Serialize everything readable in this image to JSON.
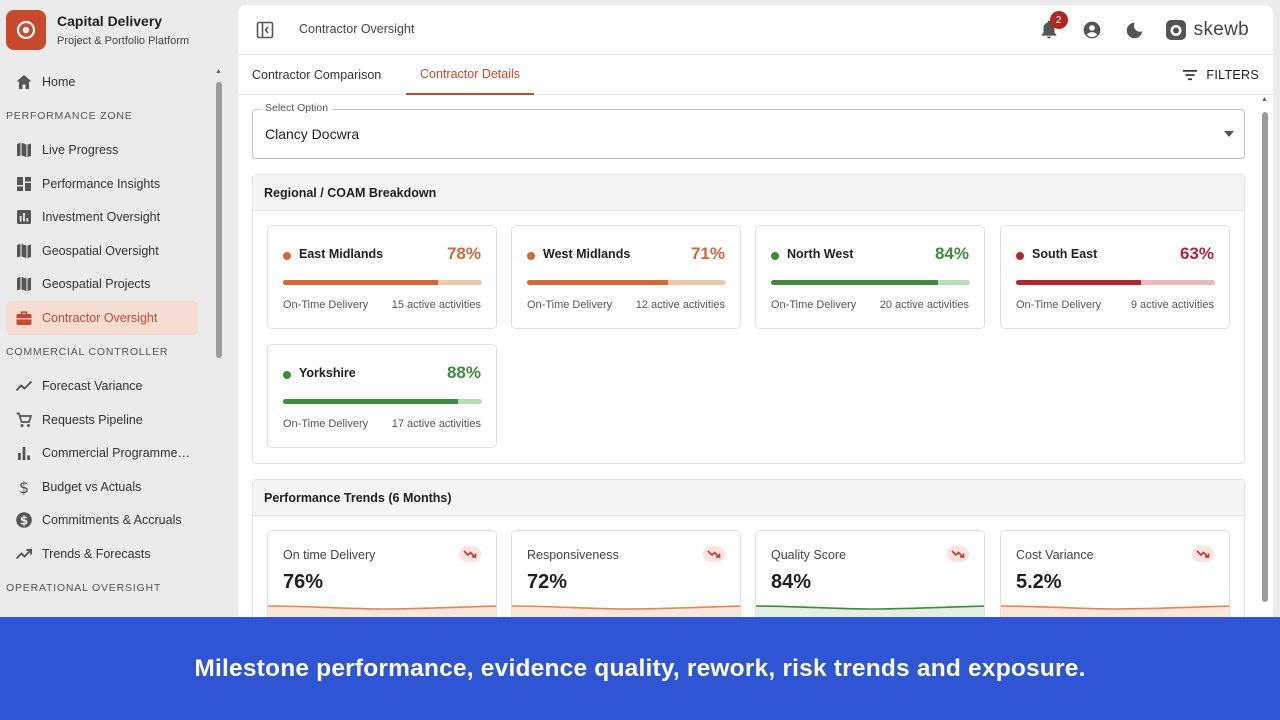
{
  "brand": {
    "title": "Capital Delivery",
    "subtitle": "Project & Portfolio Platform",
    "color": "#c8492e"
  },
  "sidebar": {
    "items": [
      {
        "type": "item",
        "label": "Home",
        "icon": "home-icon"
      },
      {
        "type": "section",
        "label": "PERFORMANCE ZONE"
      },
      {
        "type": "item",
        "label": "Live Progress",
        "icon": "map-icon"
      },
      {
        "type": "item",
        "label": "Performance Insights",
        "icon": "dashboard-icon"
      },
      {
        "type": "item",
        "label": "Investment Oversight",
        "icon": "bar-chart-box-icon"
      },
      {
        "type": "item",
        "label": "Geospatial Oversight",
        "icon": "map-icon"
      },
      {
        "type": "item",
        "label": "Geospatial Projects",
        "icon": "map-icon"
      },
      {
        "type": "item",
        "label": "Contractor Oversight",
        "icon": "briefcase-icon",
        "active": true
      },
      {
        "type": "section",
        "label": "COMMERCIAL CONTROLLER"
      },
      {
        "type": "item",
        "label": "Forecast Variance",
        "icon": "line-trend-icon"
      },
      {
        "type": "item",
        "label": "Requests Pipeline",
        "icon": "cart-icon"
      },
      {
        "type": "item",
        "label": "Commercial Programme…",
        "icon": "bar-chart-icon"
      },
      {
        "type": "item",
        "label": "Budget vs Actuals",
        "icon": "dollar-icon"
      },
      {
        "type": "item",
        "label": "Commitments & Accruals",
        "icon": "dollar-circle-icon"
      },
      {
        "type": "item",
        "label": "Trends & Forecasts",
        "icon": "trending-up-icon"
      },
      {
        "type": "section",
        "label": "OPERATIONAL OVERSIGHT"
      }
    ]
  },
  "header": {
    "breadcrumb": "Contractor Oversight",
    "notification_count": "2",
    "logo_text": "skewb"
  },
  "tabs": [
    {
      "label": "Contractor Comparison",
      "active": false
    },
    {
      "label": "Contractor Details",
      "active": true
    }
  ],
  "filters_label": "FILTERS",
  "select": {
    "label": "Select Option",
    "value": "Clancy Docwra"
  },
  "regional": {
    "title": "Regional / COAM Breakdown",
    "metric_label": "On-Time Delivery",
    "regions": [
      {
        "name": "East Midlands",
        "percent": 78,
        "percent_label": "78%",
        "activities": "15 active activities",
        "color": "#d2693a",
        "track": "#f0c7a9"
      },
      {
        "name": "West Midlands",
        "percent": 71,
        "percent_label": "71%",
        "activities": "12 active activities",
        "color": "#d2693a",
        "track": "#f0c7a9"
      },
      {
        "name": "North West",
        "percent": 84,
        "percent_label": "84%",
        "activities": "20 active activities",
        "color": "#3f8a3d",
        "track": "#b9dbb5"
      },
      {
        "name": "South East",
        "percent": 63,
        "percent_label": "63%",
        "activities": "9 active activities",
        "color": "#b3262e",
        "track": "#edb8bb"
      },
      {
        "name": "Yorkshire",
        "percent": 88,
        "percent_label": "88%",
        "activities": "17 active activities",
        "color": "#3f8a3d",
        "track": "#b9dbb5"
      }
    ]
  },
  "trends": {
    "title": "Performance Trends (6 Months)",
    "cards": [
      {
        "name": "On time Delivery",
        "value": "76%",
        "color": "#e0875a",
        "fill": "#fbe6da",
        "trend": "down"
      },
      {
        "name": "Responsiveness",
        "value": "72%",
        "color": "#e0875a",
        "fill": "#fbe6da",
        "trend": "down"
      },
      {
        "name": "Quality Score",
        "value": "84%",
        "color": "#3f8a3d",
        "fill": "#e3f0e1",
        "trend": "down"
      },
      {
        "name": "Cost Variance",
        "value": "5.2%",
        "color": "#e0875a",
        "fill": "#fbe6da",
        "trend": "down"
      }
    ]
  },
  "caption": "Milestone performance, evidence quality, rework, risk trends and exposure."
}
